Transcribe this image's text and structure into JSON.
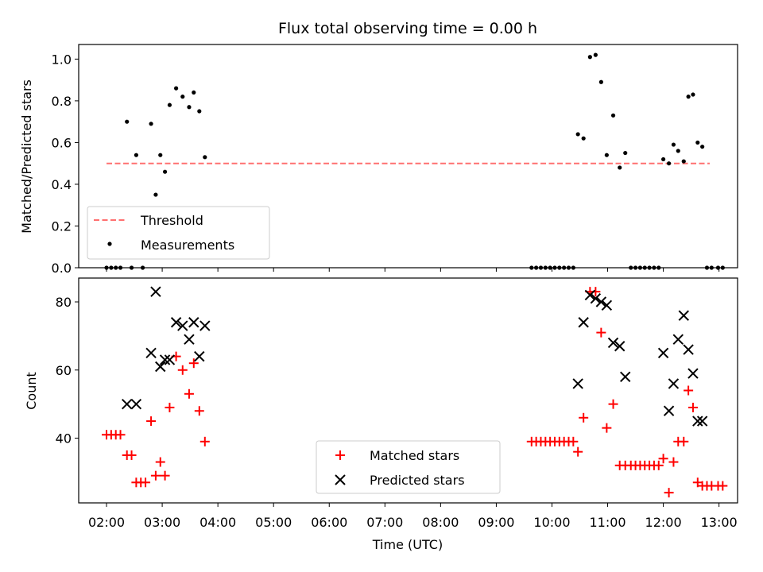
{
  "chart_data": [
    {
      "type": "scatter",
      "title": "Flux total observing time = 0.00 h",
      "xlabel": "",
      "ylabel": "Matched/Predicted stars",
      "xlim": [
        "01:30",
        "13:20"
      ],
      "ylim": [
        0.0,
        1.07
      ],
      "x_ticks": [
        "02:00",
        "03:00",
        "04:00",
        "05:00",
        "06:00",
        "07:00",
        "08:00",
        "09:00",
        "10:00",
        "11:00",
        "12:00",
        "13:00"
      ],
      "y_ticks": [
        "0.0",
        "0.2",
        "0.4",
        "0.6",
        "0.8",
        "1.0"
      ],
      "legend_position": "lower-left",
      "threshold": {
        "name": "Threshold",
        "value": 0.5,
        "x": [
          "02:00",
          "12:50"
        ],
        "color": "#ff7070",
        "style": "dashed"
      },
      "series": [
        {
          "name": "Measurements",
          "color": "#000000",
          "marker": "dot",
          "points": [
            [
              "02:00",
              0.0
            ],
            [
              "02:05",
              0.0
            ],
            [
              "02:10",
              0.0
            ],
            [
              "02:15",
              0.0
            ],
            [
              "02:22",
              0.7
            ],
            [
              "02:27",
              0.0
            ],
            [
              "02:32",
              0.54
            ],
            [
              "02:39",
              0.0
            ],
            [
              "02:48",
              0.69
            ],
            [
              "02:53",
              0.35
            ],
            [
              "02:58",
              0.54
            ],
            [
              "03:03",
              0.46
            ],
            [
              "03:08",
              0.78
            ],
            [
              "03:15",
              0.86
            ],
            [
              "03:22",
              0.82
            ],
            [
              "03:29",
              0.77
            ],
            [
              "03:34",
              0.84
            ],
            [
              "03:40",
              0.75
            ],
            [
              "03:46",
              0.53
            ],
            [
              "09:38",
              0.0
            ],
            [
              "09:43",
              0.0
            ],
            [
              "09:48",
              0.0
            ],
            [
              "09:53",
              0.0
            ],
            [
              "09:58",
              0.0
            ],
            [
              "10:03",
              0.0
            ],
            [
              "10:08",
              0.0
            ],
            [
              "10:13",
              0.0
            ],
            [
              "10:18",
              0.0
            ],
            [
              "10:23",
              0.0
            ],
            [
              "10:28",
              0.64
            ],
            [
              "10:34",
              0.62
            ],
            [
              "10:41",
              1.01
            ],
            [
              "10:47",
              1.02
            ],
            [
              "10:53",
              0.89
            ],
            [
              "10:59",
              0.54
            ],
            [
              "11:06",
              0.73
            ],
            [
              "11:13",
              0.48
            ],
            [
              "11:19",
              0.55
            ],
            [
              "11:25",
              0.0
            ],
            [
              "11:30",
              0.0
            ],
            [
              "11:35",
              0.0
            ],
            [
              "11:40",
              0.0
            ],
            [
              "11:45",
              0.0
            ],
            [
              "11:50",
              0.0
            ],
            [
              "11:55",
              0.0
            ],
            [
              "12:00",
              0.52
            ],
            [
              "12:06",
              0.5
            ],
            [
              "12:11",
              0.59
            ],
            [
              "12:16",
              0.56
            ],
            [
              "12:22",
              0.51
            ],
            [
              "12:27",
              0.82
            ],
            [
              "12:32",
              0.83
            ],
            [
              "12:37",
              0.6
            ],
            [
              "12:42",
              0.58
            ],
            [
              "12:47",
              0.0
            ],
            [
              "12:52",
              0.0
            ],
            [
              "12:59",
              0.0
            ],
            [
              "13:04",
              0.0
            ]
          ]
        }
      ]
    },
    {
      "type": "scatter",
      "title": "",
      "xlabel": "Time (UTC)",
      "ylabel": "Count",
      "xlim": [
        "01:30",
        "13:20"
      ],
      "ylim": [
        21,
        87
      ],
      "x_ticks": [
        "02:00",
        "03:00",
        "04:00",
        "05:00",
        "06:00",
        "07:00",
        "08:00",
        "09:00",
        "10:00",
        "11:00",
        "12:00",
        "13:00"
      ],
      "y_ticks": [
        "40",
        "60",
        "80"
      ],
      "legend_position": "lower-center",
      "series": [
        {
          "name": "Matched stars",
          "color": "#ff0000",
          "marker": "plus",
          "points": [
            [
              "02:00",
              41
            ],
            [
              "02:05",
              41
            ],
            [
              "02:10",
              41
            ],
            [
              "02:15",
              41
            ],
            [
              "02:22",
              35
            ],
            [
              "02:27",
              35
            ],
            [
              "02:32",
              27
            ],
            [
              "02:37",
              27
            ],
            [
              "02:42",
              27
            ],
            [
              "02:48",
              45
            ],
            [
              "02:53",
              29
            ],
            [
              "02:58",
              33
            ],
            [
              "03:03",
              29
            ],
            [
              "03:08",
              49
            ],
            [
              "03:15",
              64
            ],
            [
              "03:22",
              60
            ],
            [
              "03:29",
              53
            ],
            [
              "03:34",
              62
            ],
            [
              "03:40",
              48
            ],
            [
              "03:46",
              39
            ],
            [
              "09:38",
              39
            ],
            [
              "09:43",
              39
            ],
            [
              "09:48",
              39
            ],
            [
              "09:53",
              39
            ],
            [
              "09:58",
              39
            ],
            [
              "10:03",
              39
            ],
            [
              "10:08",
              39
            ],
            [
              "10:13",
              39
            ],
            [
              "10:18",
              39
            ],
            [
              "10:23",
              39
            ],
            [
              "10:28",
              36
            ],
            [
              "10:34",
              46
            ],
            [
              "10:41",
              83
            ],
            [
              "10:47",
              83
            ],
            [
              "10:53",
              71
            ],
            [
              "10:59",
              43
            ],
            [
              "11:06",
              50
            ],
            [
              "11:13",
              32
            ],
            [
              "11:19",
              32
            ],
            [
              "11:25",
              32
            ],
            [
              "11:30",
              32
            ],
            [
              "11:35",
              32
            ],
            [
              "11:40",
              32
            ],
            [
              "11:45",
              32
            ],
            [
              "11:50",
              32
            ],
            [
              "11:55",
              32
            ],
            [
              "12:00",
              34
            ],
            [
              "12:06",
              24
            ],
            [
              "12:11",
              33
            ],
            [
              "12:16",
              39
            ],
            [
              "12:22",
              39
            ],
            [
              "12:27",
              54
            ],
            [
              "12:32",
              49
            ],
            [
              "12:37",
              27
            ],
            [
              "12:42",
              26
            ],
            [
              "12:47",
              26
            ],
            [
              "12:52",
              26
            ],
            [
              "12:59",
              26
            ],
            [
              "13:04",
              26
            ]
          ]
        },
        {
          "name": "Predicted stars",
          "color": "#000000",
          "marker": "x",
          "points": [
            [
              "02:22",
              50
            ],
            [
              "02:32",
              50
            ],
            [
              "02:48",
              65
            ],
            [
              "02:53",
              83
            ],
            [
              "02:58",
              61
            ],
            [
              "03:03",
              63
            ],
            [
              "03:08",
              63
            ],
            [
              "03:15",
              74
            ],
            [
              "03:22",
              73
            ],
            [
              "03:29",
              69
            ],
            [
              "03:34",
              74
            ],
            [
              "03:40",
              64
            ],
            [
              "03:46",
              73
            ],
            [
              "10:28",
              56
            ],
            [
              "10:34",
              74
            ],
            [
              "10:41",
              82
            ],
            [
              "10:47",
              81
            ],
            [
              "10:53",
              80
            ],
            [
              "10:59",
              79
            ],
            [
              "11:06",
              68
            ],
            [
              "11:13",
              67
            ],
            [
              "11:19",
              58
            ],
            [
              "12:00",
              65
            ],
            [
              "12:06",
              48
            ],
            [
              "12:11",
              56
            ],
            [
              "12:16",
              69
            ],
            [
              "12:22",
              76
            ],
            [
              "12:27",
              66
            ],
            [
              "12:32",
              59
            ],
            [
              "12:37",
              45
            ],
            [
              "12:42",
              45
            ]
          ]
        }
      ]
    }
  ]
}
